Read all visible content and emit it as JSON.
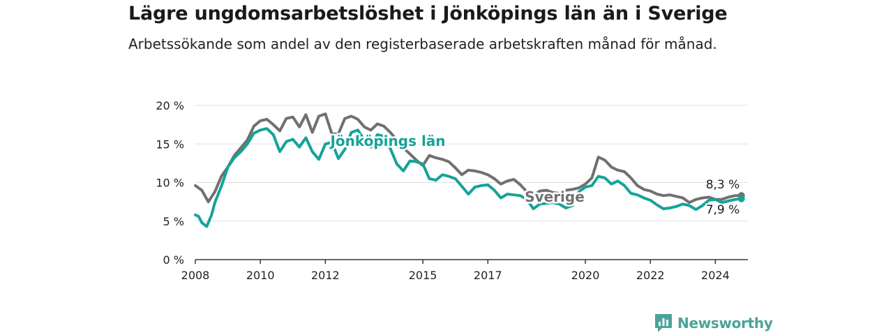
{
  "title": "Lägre ungdomsarbetslöshet i Jönköpings län än i Sverige",
  "subtitle": "Arbetssökande som andel av den registerbaserade arbetskraften månad för månad.",
  "brand": {
    "name": "Newsworthy"
  },
  "colors": {
    "jonkoping": "#15a398",
    "sverige": "#707070",
    "grid": "#dddddd",
    "axis": "#333333",
    "brand": "#4aa39a"
  },
  "chart_data": {
    "type": "line",
    "xlabel": "",
    "ylabel": "",
    "xlim": [
      2008,
      2025
    ],
    "ylim": [
      0,
      20
    ],
    "x_ticks": [
      "2008",
      "2010",
      "2012",
      "2015",
      "2017",
      "2020",
      "2022",
      "2024"
    ],
    "y_ticks": [
      "0 %",
      "5 %",
      "10 %",
      "15 %",
      "20 %"
    ],
    "grid": true,
    "series": [
      {
        "name": "Sverige",
        "end_label": "8,3 %",
        "points": [
          [
            2008.0,
            9.6
          ],
          [
            2008.2,
            9.0
          ],
          [
            2008.4,
            7.5
          ],
          [
            2008.6,
            8.8
          ],
          [
            2008.8,
            10.8
          ],
          [
            2009.0,
            12.0
          ],
          [
            2009.2,
            13.5
          ],
          [
            2009.4,
            14.5
          ],
          [
            2009.6,
            15.5
          ],
          [
            2009.8,
            17.3
          ],
          [
            2010.0,
            18.0
          ],
          [
            2010.2,
            18.2
          ],
          [
            2010.4,
            17.5
          ],
          [
            2010.6,
            16.7
          ],
          [
            2010.8,
            18.3
          ],
          [
            2011.0,
            18.5
          ],
          [
            2011.2,
            17.2
          ],
          [
            2011.4,
            18.8
          ],
          [
            2011.6,
            16.5
          ],
          [
            2011.8,
            18.6
          ],
          [
            2012.0,
            18.9
          ],
          [
            2012.2,
            16.3
          ],
          [
            2012.4,
            16.3
          ],
          [
            2012.6,
            18.3
          ],
          [
            2012.8,
            18.6
          ],
          [
            2013.0,
            18.2
          ],
          [
            2013.2,
            17.2
          ],
          [
            2013.4,
            16.8
          ],
          [
            2013.6,
            17.6
          ],
          [
            2013.8,
            17.3
          ],
          [
            2014.0,
            16.5
          ],
          [
            2014.2,
            15.5
          ],
          [
            2014.4,
            14.5
          ],
          [
            2014.6,
            13.7
          ],
          [
            2014.8,
            12.9
          ],
          [
            2015.0,
            12.2
          ],
          [
            2015.2,
            13.5
          ],
          [
            2015.4,
            13.2
          ],
          [
            2015.6,
            13.0
          ],
          [
            2015.8,
            12.7
          ],
          [
            2016.0,
            11.9
          ],
          [
            2016.2,
            11.0
          ],
          [
            2016.4,
            11.6
          ],
          [
            2016.6,
            11.5
          ],
          [
            2016.8,
            11.3
          ],
          [
            2017.0,
            11.0
          ],
          [
            2017.2,
            10.5
          ],
          [
            2017.4,
            9.8
          ],
          [
            2017.6,
            10.2
          ],
          [
            2017.8,
            10.4
          ],
          [
            2018.0,
            9.7
          ],
          [
            2018.2,
            8.8
          ],
          [
            2018.4,
            8.3
          ],
          [
            2018.6,
            8.9
          ],
          [
            2018.8,
            9.0
          ],
          [
            2019.0,
            8.7
          ],
          [
            2019.2,
            8.6
          ],
          [
            2019.4,
            9.0
          ],
          [
            2019.6,
            9.1
          ],
          [
            2019.8,
            9.3
          ],
          [
            2020.0,
            9.8
          ],
          [
            2020.2,
            10.6
          ],
          [
            2020.4,
            13.3
          ],
          [
            2020.6,
            12.9
          ],
          [
            2020.8,
            12.0
          ],
          [
            2021.0,
            11.6
          ],
          [
            2021.2,
            11.4
          ],
          [
            2021.4,
            10.6
          ],
          [
            2021.6,
            9.6
          ],
          [
            2021.8,
            9.1
          ],
          [
            2022.0,
            8.9
          ],
          [
            2022.2,
            8.5
          ],
          [
            2022.4,
            8.3
          ],
          [
            2022.6,
            8.4
          ],
          [
            2022.8,
            8.2
          ],
          [
            2023.0,
            8.0
          ],
          [
            2023.2,
            7.4
          ],
          [
            2023.4,
            7.8
          ],
          [
            2023.6,
            8.0
          ],
          [
            2023.8,
            8.1
          ],
          [
            2024.0,
            7.8
          ],
          [
            2024.2,
            7.8
          ],
          [
            2024.4,
            8.1
          ],
          [
            2024.6,
            8.3
          ],
          [
            2024.8,
            8.3
          ]
        ]
      },
      {
        "name": "Jönköpings län",
        "end_label": "7,9 %",
        "points": [
          [
            2008.0,
            5.8
          ],
          [
            2008.1,
            5.6
          ],
          [
            2008.2,
            4.8
          ],
          [
            2008.35,
            4.3
          ],
          [
            2008.5,
            5.8
          ],
          [
            2008.6,
            7.4
          ],
          [
            2008.8,
            9.5
          ],
          [
            2009.0,
            12.0
          ],
          [
            2009.2,
            13.2
          ],
          [
            2009.4,
            14.0
          ],
          [
            2009.6,
            15.0
          ],
          [
            2009.8,
            16.4
          ],
          [
            2010.0,
            16.8
          ],
          [
            2010.2,
            17.0
          ],
          [
            2010.4,
            16.2
          ],
          [
            2010.6,
            14.0
          ],
          [
            2010.8,
            15.3
          ],
          [
            2011.0,
            15.6
          ],
          [
            2011.2,
            14.6
          ],
          [
            2011.4,
            15.8
          ],
          [
            2011.6,
            14.0
          ],
          [
            2011.8,
            13.0
          ],
          [
            2012.0,
            15.0
          ],
          [
            2012.2,
            15.2
          ],
          [
            2012.4,
            13.1
          ],
          [
            2012.6,
            14.3
          ],
          [
            2012.8,
            16.5
          ],
          [
            2013.0,
            16.8
          ],
          [
            2013.2,
            15.5
          ],
          [
            2013.4,
            14.6
          ],
          [
            2013.6,
            16.2
          ],
          [
            2013.8,
            16.0
          ],
          [
            2014.0,
            14.4
          ],
          [
            2014.2,
            12.4
          ],
          [
            2014.4,
            11.5
          ],
          [
            2014.6,
            12.8
          ],
          [
            2014.8,
            12.7
          ],
          [
            2015.0,
            12.4
          ],
          [
            2015.2,
            10.5
          ],
          [
            2015.4,
            10.3
          ],
          [
            2015.6,
            11.0
          ],
          [
            2015.8,
            10.8
          ],
          [
            2016.0,
            10.5
          ],
          [
            2016.2,
            9.5
          ],
          [
            2016.4,
            8.5
          ],
          [
            2016.6,
            9.4
          ],
          [
            2016.8,
            9.6
          ],
          [
            2017.0,
            9.7
          ],
          [
            2017.2,
            9.0
          ],
          [
            2017.4,
            8.0
          ],
          [
            2017.6,
            8.5
          ],
          [
            2017.8,
            8.4
          ],
          [
            2018.0,
            8.3
          ],
          [
            2018.2,
            7.8
          ],
          [
            2018.4,
            6.6
          ],
          [
            2018.6,
            7.2
          ],
          [
            2018.8,
            7.3
          ],
          [
            2019.0,
            7.4
          ],
          [
            2019.2,
            7.2
          ],
          [
            2019.4,
            6.7
          ],
          [
            2019.6,
            7.0
          ],
          [
            2019.8,
            8.8
          ],
          [
            2020.0,
            9.4
          ],
          [
            2020.2,
            9.6
          ],
          [
            2020.4,
            10.8
          ],
          [
            2020.6,
            10.6
          ],
          [
            2020.8,
            9.8
          ],
          [
            2021.0,
            10.2
          ],
          [
            2021.2,
            9.6
          ],
          [
            2021.4,
            8.6
          ],
          [
            2021.6,
            8.4
          ],
          [
            2021.8,
            8.0
          ],
          [
            2022.0,
            7.7
          ],
          [
            2022.2,
            7.1
          ],
          [
            2022.4,
            6.6
          ],
          [
            2022.6,
            6.7
          ],
          [
            2022.8,
            6.9
          ],
          [
            2023.0,
            7.2
          ],
          [
            2023.2,
            7.0
          ],
          [
            2023.4,
            6.5
          ],
          [
            2023.6,
            7.0
          ],
          [
            2023.8,
            7.7
          ],
          [
            2024.0,
            7.8
          ],
          [
            2024.2,
            7.4
          ],
          [
            2024.4,
            7.6
          ],
          [
            2024.6,
            7.8
          ],
          [
            2024.8,
            7.9
          ]
        ]
      }
    ]
  }
}
